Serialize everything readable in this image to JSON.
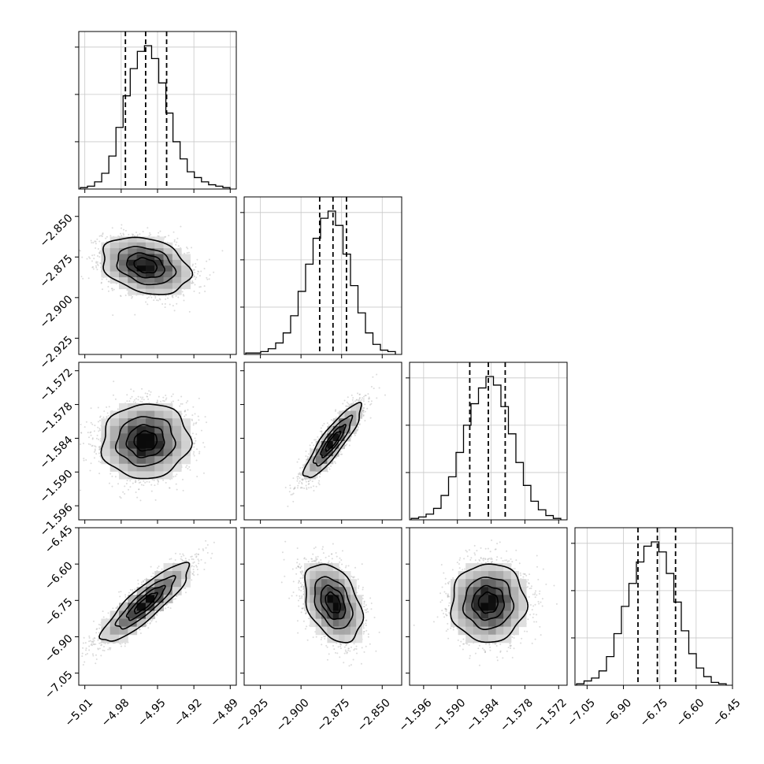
{
  "chart_data": {
    "type": "corner",
    "grid": true,
    "parameters": [
      {
        "range": [
          -5.015,
          -4.885
        ],
        "ticks": [
          -5.01,
          -4.98,
          -4.95,
          -4.92,
          -4.89
        ],
        "tick_labels": [
          "−5.01",
          "−4.98",
          "−4.95",
          "−4.92",
          "−4.89"
        ],
        "quantiles": [
          -4.9765,
          -4.9598,
          -4.9425
        ]
      },
      {
        "range": [
          -2.935,
          -2.838
        ],
        "ticks": [
          -2.925,
          -2.9,
          -2.875,
          -2.85
        ],
        "tick_labels": [
          "−2.925",
          "−2.900",
          "−2.875",
          "−2.850"
        ],
        "quantiles": [
          -2.8885,
          -2.8803,
          -2.872
        ]
      },
      {
        "range": [
          -1.5985,
          -1.5705
        ],
        "ticks": [
          -1.596,
          -1.59,
          -1.584,
          -1.578,
          -1.572
        ],
        "tick_labels": [
          "−1.596",
          "−1.590",
          "−1.584",
          "−1.578",
          "−1.572"
        ],
        "quantiles": [
          -1.5878,
          -1.5845,
          -1.5815
        ]
      },
      {
        "range": [
          -7.1,
          -6.45
        ],
        "ticks": [
          -7.05,
          -6.9,
          -6.75,
          -6.6,
          -6.45
        ],
        "tick_labels": [
          "−7.05",
          "−6.90",
          "−6.75",
          "−6.60",
          "−6.45"
        ],
        "quantiles": [
          -6.84,
          -6.76,
          -6.685
        ]
      }
    ],
    "histograms": [
      [
        0.01,
        0.02,
        0.05,
        0.11,
        0.23,
        0.43,
        0.65,
        0.84,
        0.96,
        1.0,
        0.91,
        0.74,
        0.53,
        0.33,
        0.21,
        0.12,
        0.08,
        0.05,
        0.03,
        0.02,
        0.01
      ],
      [
        0.01,
        0.01,
        0.02,
        0.04,
        0.08,
        0.15,
        0.27,
        0.44,
        0.63,
        0.81,
        0.95,
        1.0,
        0.9,
        0.7,
        0.48,
        0.29,
        0.15,
        0.07,
        0.03,
        0.02
      ],
      [
        0.01,
        0.02,
        0.04,
        0.08,
        0.17,
        0.3,
        0.47,
        0.66,
        0.81,
        0.92,
        1.0,
        0.94,
        0.79,
        0.6,
        0.4,
        0.24,
        0.13,
        0.07,
        0.03,
        0.01
      ],
      [
        0.01,
        0.03,
        0.05,
        0.1,
        0.2,
        0.36,
        0.55,
        0.71,
        0.86,
        0.97,
        1.0,
        0.93,
        0.78,
        0.58,
        0.38,
        0.22,
        0.12,
        0.06,
        0.02,
        0.01
      ]
    ],
    "pairs": [
      {
        "row": 1,
        "col": 0,
        "mean": [
          -4.9598,
          -2.8803
        ],
        "sigma": [
          0.0175,
          0.0085
        ],
        "rho": -0.28
      },
      {
        "row": 2,
        "col": 0,
        "mean": [
          -4.9598,
          -1.5845
        ],
        "sigma": [
          0.0175,
          0.0032
        ],
        "rho": 0.05
      },
      {
        "row": 2,
        "col": 1,
        "mean": [
          -2.8803,
          -1.5845
        ],
        "sigma": [
          0.0085,
          0.0032
        ],
        "rho": 0.88
      },
      {
        "row": 3,
        "col": 0,
        "mean": [
          -4.9598,
          -6.76
        ],
        "sigma": [
          0.0175,
          0.078
        ],
        "rho": 0.87
      },
      {
        "row": 3,
        "col": 1,
        "mean": [
          -2.8803,
          -6.76
        ],
        "sigma": [
          0.0085,
          0.078
        ],
        "rho": -0.38
      },
      {
        "row": 3,
        "col": 2,
        "mean": [
          -1.5845,
          -6.76
        ],
        "sigma": [
          0.0032,
          0.078
        ],
        "rho": 0.02
      }
    ],
    "contour_levels_sigma": [
      0.5,
      1.0,
      1.5,
      2.0
    ]
  }
}
